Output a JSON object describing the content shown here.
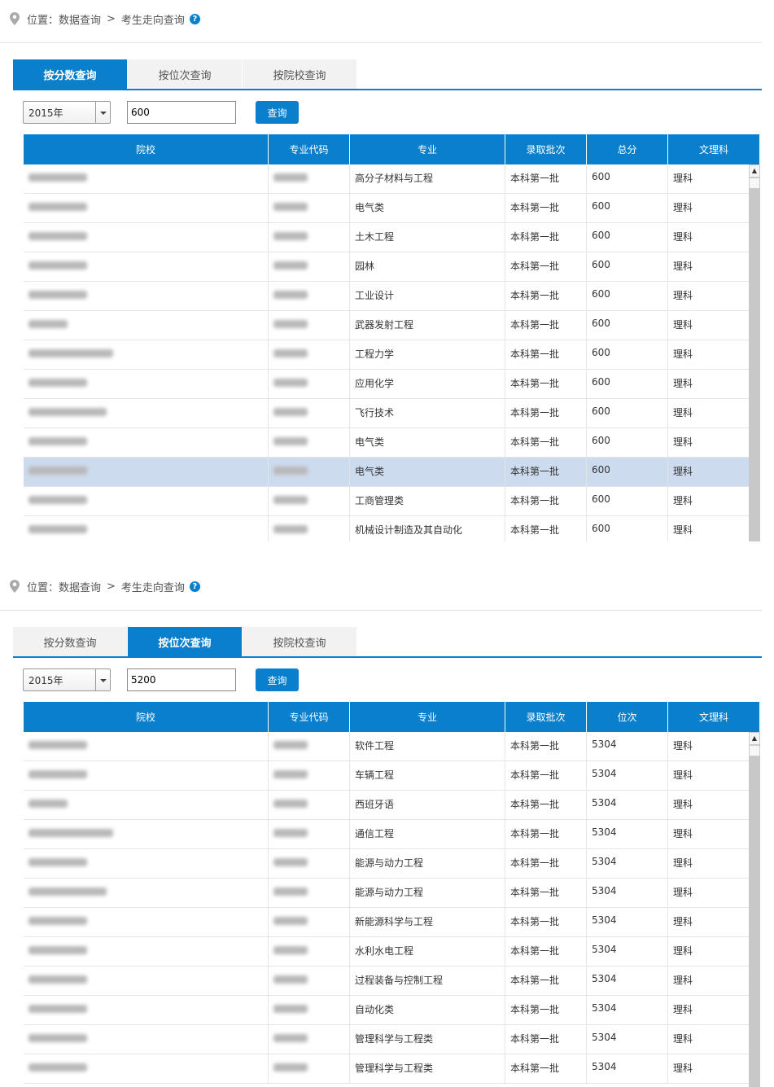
{
  "breadcrumb": {
    "label": "位置：数据查询",
    "sep": ">",
    "current": "考生走向查询",
    "help": "?"
  },
  "tabs": [
    "按分数查询",
    "按位次查询",
    "按院校查询"
  ],
  "colors": {
    "accent": "#0a7fcc",
    "highlight_row": "#cddbee"
  },
  "panels": [
    {
      "active_tab": 0,
      "year": "2015年",
      "input": "600",
      "search_label": "查询",
      "columns": [
        "院校",
        "专业代码",
        "专业",
        "录取批次",
        "总分",
        "文理科"
      ],
      "highlight_row": 10,
      "rows": [
        [
          "高分子材料与工程",
          "本科第一批",
          "600",
          "理科"
        ],
        [
          "电气类",
          "本科第一批",
          "600",
          "理科"
        ],
        [
          "土木工程",
          "本科第一批",
          "600",
          "理科"
        ],
        [
          "园林",
          "本科第一批",
          "600",
          "理科"
        ],
        [
          "工业设计",
          "本科第一批",
          "600",
          "理科"
        ],
        [
          "武器发射工程",
          "本科第一批",
          "600",
          "理科"
        ],
        [
          "工程力学",
          "本科第一批",
          "600",
          "理科"
        ],
        [
          "应用化学",
          "本科第一批",
          "600",
          "理科"
        ],
        [
          "飞行技术",
          "本科第一批",
          "600",
          "理科"
        ],
        [
          "电气类",
          "本科第一批",
          "600",
          "理科"
        ],
        [
          "电气类",
          "本科第一批",
          "600",
          "理科"
        ],
        [
          "工商管理类",
          "本科第一批",
          "600",
          "理科"
        ],
        [
          "机械设计制造及其自动化",
          "本科第一批",
          "600",
          "理科"
        ]
      ]
    },
    {
      "active_tab": 1,
      "year": "2015年",
      "input": "5200",
      "search_label": "查询",
      "columns": [
        "院校",
        "专业代码",
        "专业",
        "录取批次",
        "位次",
        "文理科"
      ],
      "highlight_row": -1,
      "rows": [
        [
          "软件工程",
          "本科第一批",
          "5304",
          "理科"
        ],
        [
          "车辆工程",
          "本科第一批",
          "5304",
          "理科"
        ],
        [
          "西班牙语",
          "本科第一批",
          "5304",
          "理科"
        ],
        [
          "通信工程",
          "本科第一批",
          "5304",
          "理科"
        ],
        [
          "能源与动力工程",
          "本科第一批",
          "5304",
          "理科"
        ],
        [
          "能源与动力工程",
          "本科第一批",
          "5304",
          "理科"
        ],
        [
          "新能源科学与工程",
          "本科第一批",
          "5304",
          "理科"
        ],
        [
          "水利水电工程",
          "本科第一批",
          "5304",
          "理科"
        ],
        [
          "过程装备与控制工程",
          "本科第一批",
          "5304",
          "理科"
        ],
        [
          "自动化类",
          "本科第一批",
          "5304",
          "理科"
        ],
        [
          "管理科学与工程类",
          "本科第一批",
          "5304",
          "理科"
        ],
        [
          "管理科学与工程类",
          "本科第一批",
          "5304",
          "理科"
        ]
      ]
    }
  ]
}
